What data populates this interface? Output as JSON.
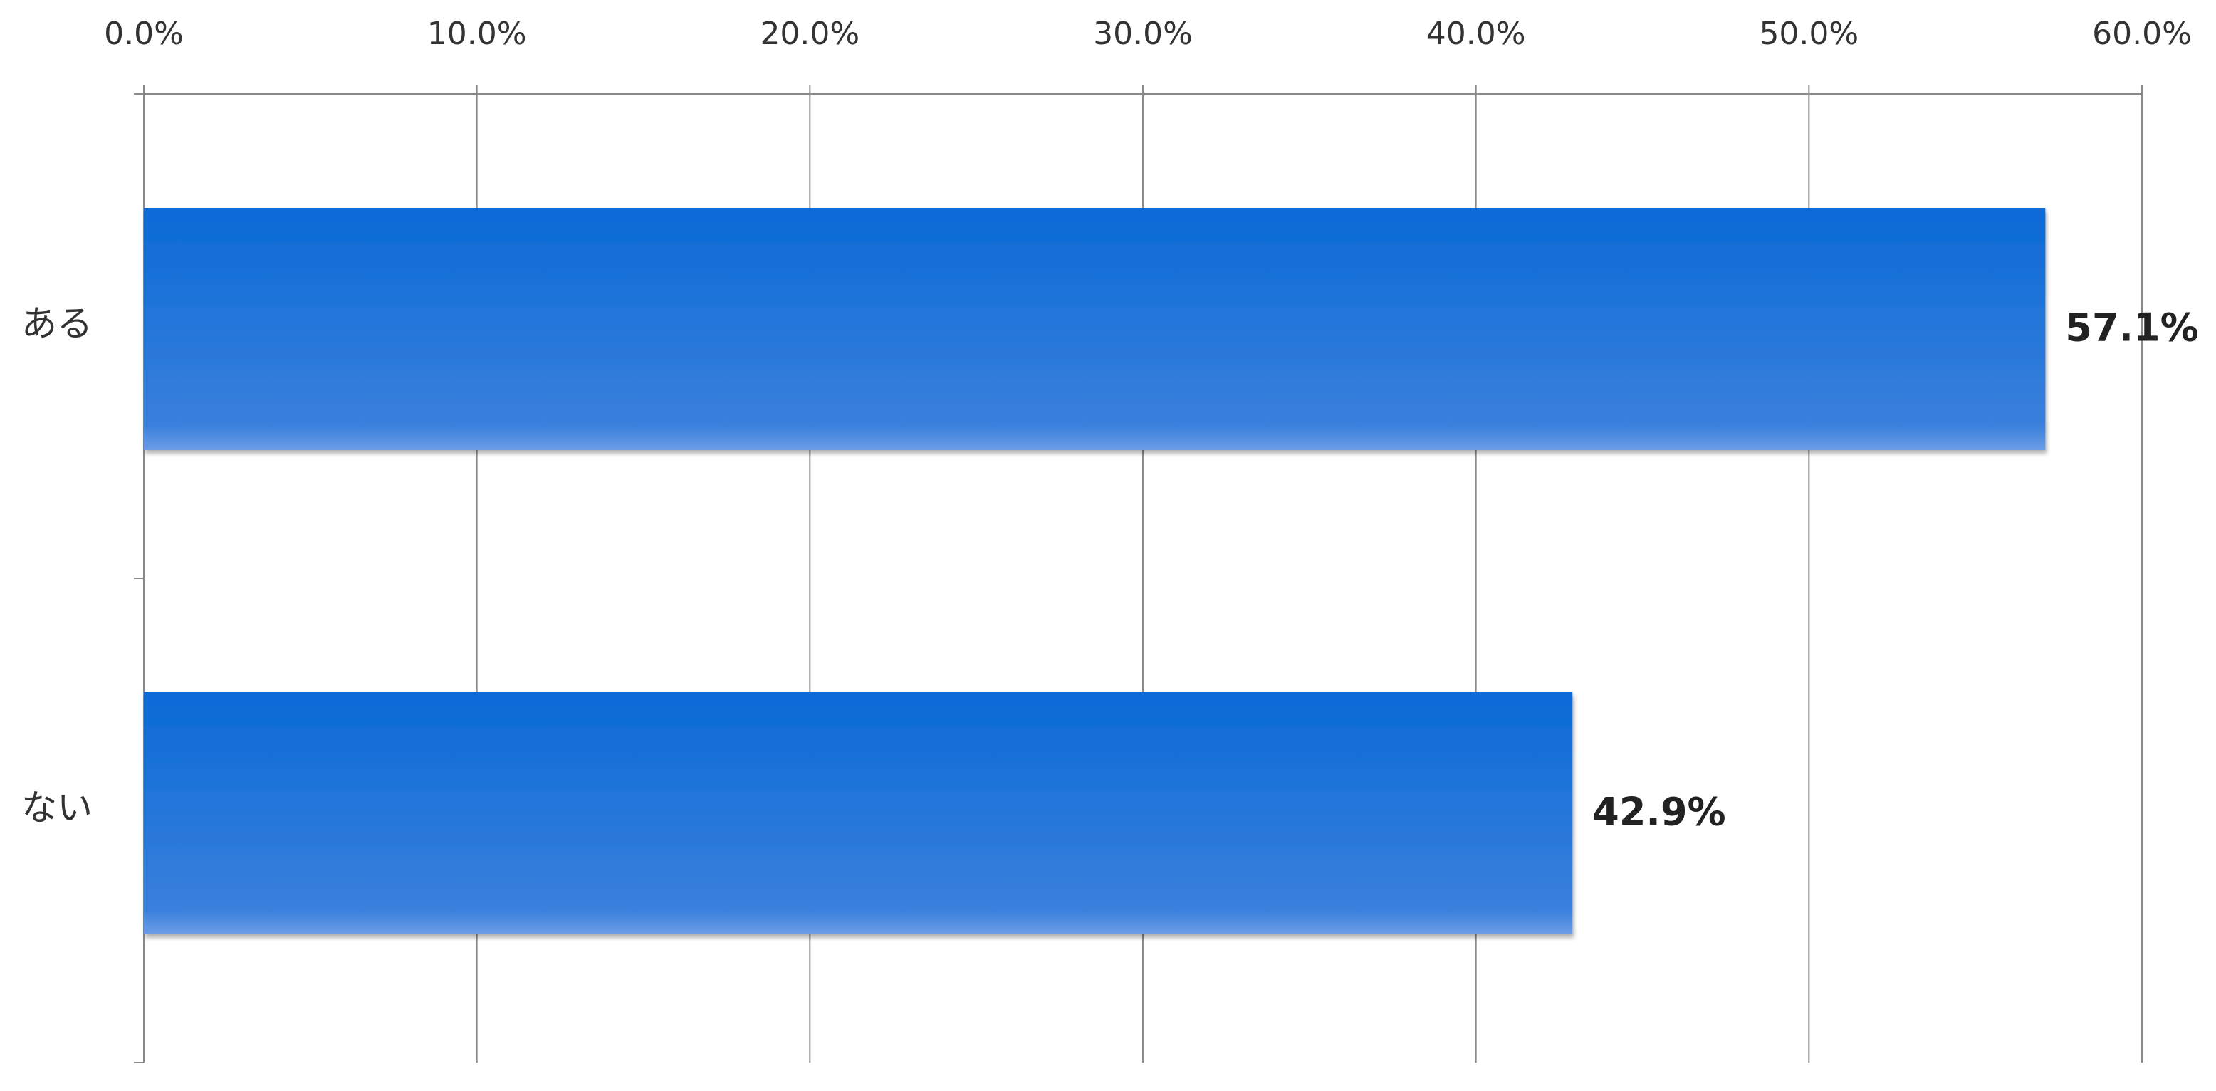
{
  "chart_data": {
    "type": "bar",
    "orientation": "horizontal",
    "categories": [
      "ある",
      "ない"
    ],
    "values": [
      57.1,
      42.9
    ],
    "value_labels": [
      "57.1%",
      "42.9%"
    ],
    "color": "#0a6ad6",
    "xlim": [
      0,
      60
    ],
    "xticks": [
      {
        "value": 0,
        "label": "0.0%"
      },
      {
        "value": 10,
        "label": "10.0%"
      },
      {
        "value": 20,
        "label": "20.0%"
      },
      {
        "value": 30,
        "label": "30.0%"
      },
      {
        "value": 40,
        "label": "40.0%"
      },
      {
        "value": 50,
        "label": "50.0%"
      },
      {
        "value": 60,
        "label": "60.0%"
      }
    ],
    "grid": true
  }
}
